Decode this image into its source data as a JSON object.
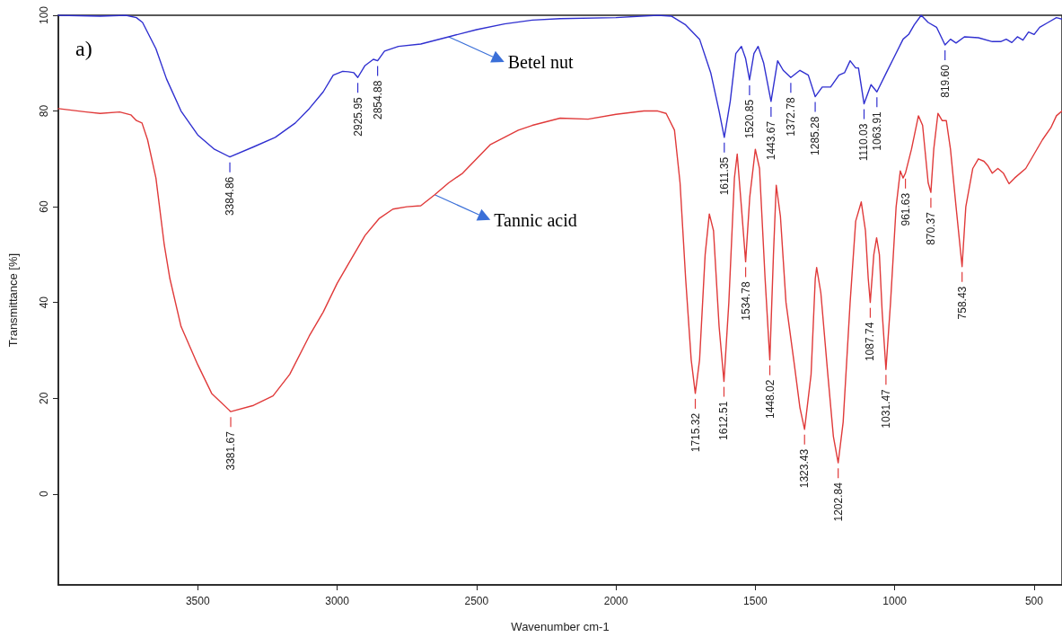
{
  "chart_data": {
    "type": "line",
    "xlabel": "Wavenumber cm-1",
    "ylabel": "Transmittance [%]",
    "xlim": [
      4000,
      400
    ],
    "xticks": [
      3500,
      3000,
      2500,
      2000,
      1500,
      1000,
      500
    ],
    "ylim": [
      -19,
      100
    ],
    "yticks": [
      0,
      20,
      40,
      60,
      80,
      100
    ],
    "grid": false,
    "legend": false,
    "series": [
      {
        "name": "Betel nut",
        "color": "#3030d0",
        "x": [
          4000,
          3850,
          3758,
          3720,
          3698,
          3650,
          3612,
          3560,
          3500,
          3440,
          3384.86,
          3300,
          3222,
          3150,
          3100,
          3050,
          3014,
          2980,
          2960,
          2940,
          2925.95,
          2900,
          2870,
          2854.88,
          2830,
          2780,
          2700,
          2600,
          2500,
          2400,
          2300,
          2200,
          2000,
          1850,
          1800,
          1750,
          1700,
          1660,
          1630,
          1611.35,
          1590,
          1570,
          1550,
          1535,
          1520.85,
          1505,
          1490,
          1470,
          1443.67,
          1420,
          1400,
          1372.78,
          1340,
          1310,
          1285.28,
          1260,
          1230,
          1200,
          1180,
          1160,
          1140,
          1130,
          1110.03,
          1085,
          1063.91,
          1030,
          1000,
          970,
          950,
          930,
          905,
          880,
          850,
          819.6,
          800,
          780,
          750,
          700,
          650,
          620,
          600,
          580,
          560,
          540,
          520,
          500,
          480,
          450,
          420,
          400
        ],
        "values": [
          100,
          99.8,
          100,
          99.5,
          98.5,
          93,
          86.7,
          80,
          75,
          72,
          70.4,
          72.5,
          74.5,
          77.5,
          80.5,
          84,
          87.5,
          88.3,
          88.2,
          88,
          87,
          89.5,
          90.8,
          90.5,
          92.5,
          93.5,
          94,
          95.5,
          97,
          98.2,
          99,
          99.3,
          99.5,
          100,
          99.8,
          98,
          95,
          88,
          80,
          74.5,
          82,
          92,
          93.5,
          91,
          86.5,
          92,
          93.5,
          90,
          82,
          90.5,
          88.5,
          87,
          88.5,
          87.5,
          83,
          85,
          85,
          87.5,
          88,
          90.5,
          89,
          89,
          81.5,
          85.5,
          84,
          88,
          91.5,
          95,
          96,
          98,
          100,
          98.5,
          97.5,
          93.8,
          95,
          94.2,
          95.5,
          95.3,
          94.5,
          94.5,
          95,
          94.3,
          95.5,
          94.8,
          96.5,
          96,
          97.5,
          98.5,
          99.5,
          99.2
        ]
      },
      {
        "name": "Tannic acid",
        "color": "#e03a3a",
        "x": [
          4000,
          3900,
          3850,
          3780,
          3740,
          3720,
          3700,
          3680,
          3650,
          3620,
          3600,
          3560,
          3500,
          3450,
          3381.67,
          3300,
          3230,
          3170,
          3100,
          3050,
          3000,
          2950,
          2900,
          2850,
          2800,
          2750,
          2700,
          2650,
          2600,
          2550,
          2500,
          2450,
          2400,
          2350,
          2300,
          2200,
          2100,
          2000,
          1900,
          1850,
          1820,
          1790,
          1770,
          1750,
          1730,
          1715.32,
          1700,
          1680,
          1665,
          1650,
          1630,
          1612.51,
          1595,
          1575,
          1565,
          1550,
          1534.78,
          1520,
          1500,
          1485,
          1465,
          1448.02,
          1435,
          1425,
          1410,
          1390,
          1360,
          1340,
          1323.43,
          1300,
          1285,
          1280,
          1265,
          1240,
          1220,
          1202.84,
          1185,
          1160,
          1140,
          1120,
          1105,
          1095,
          1087.74,
          1075,
          1065,
          1055,
          1045,
          1031.47,
          1015,
          995,
          980,
          970,
          961.63,
          940,
          915,
          900,
          880,
          870.37,
          860,
          845,
          830,
          815,
          800,
          780,
          758.43,
          745,
          720,
          700,
          680,
          665,
          650,
          630,
          610,
          590,
          570,
          530,
          500,
          470,
          440,
          420,
          400
        ],
        "values": [
          80.5,
          79.8,
          79.5,
          79.8,
          79.2,
          78,
          77.5,
          74,
          66,
          52,
          45,
          35,
          27,
          21,
          17.2,
          18.5,
          20.5,
          25,
          33,
          38,
          44,
          49,
          54,
          57.5,
          59.5,
          60,
          60.2,
          62.5,
          65,
          67,
          70,
          73,
          74.5,
          76,
          77,
          78.5,
          78.3,
          79.3,
          80,
          80,
          79.5,
          76,
          65,
          45,
          28,
          21,
          28,
          50,
          58.5,
          55,
          35,
          23.5,
          40,
          66,
          71,
          60,
          48.5,
          62,
          72,
          68,
          45,
          28,
          50,
          64.5,
          58,
          40,
          27,
          18,
          13.5,
          25,
          45,
          47.3,
          42,
          25,
          12,
          6.5,
          15,
          40,
          57,
          61,
          55,
          45,
          40,
          50,
          53.5,
          50,
          38,
          26,
          40,
          60,
          67.5,
          66,
          67,
          72,
          79,
          77,
          65,
          63,
          72,
          79.5,
          78,
          78,
          72,
          60,
          47.5,
          60,
          68,
          70,
          69.5,
          68.5,
          67,
          68,
          67,
          64.8,
          66,
          68,
          71,
          74,
          76.5,
          79,
          80
        ]
      }
    ],
    "annotations": [
      "a)",
      {
        "text": "3384.86",
        "x": 3384.86,
        "y": 70.4
      },
      {
        "text": "2925.95",
        "x": 2925.95,
        "y": 87
      },
      {
        "text": "2854.88",
        "x": 2854.88,
        "y": 90.5
      },
      {
        "text": "1611.35",
        "x": 1611.35,
        "y": 74.5
      },
      {
        "text": "1520.85",
        "x": 1520.85,
        "y": 86.5
      },
      {
        "text": "1443.67",
        "x": 1443.67,
        "y": 82
      },
      {
        "text": "1372.78",
        "x": 1372.78,
        "y": 87
      },
      {
        "text": "1285.28",
        "x": 1285.28,
        "y": 83
      },
      {
        "text": "1110.03",
        "x": 1110.03,
        "y": 81.5
      },
      {
        "text": "1063.91",
        "x": 1063.91,
        "y": 84
      },
      {
        "text": "819.60",
        "x": 819.6,
        "y": 93.8
      },
      {
        "text": "3381.67",
        "x": 3381.67,
        "y": 17.2
      },
      {
        "text": "1715.32",
        "x": 1715.32,
        "y": 21
      },
      {
        "text": "1612.51",
        "x": 1612.51,
        "y": 23.5
      },
      {
        "text": "1534.78",
        "x": 1534.78,
        "y": 48.5
      },
      {
        "text": "1448.02",
        "x": 1448.02,
        "y": 28
      },
      {
        "text": "1323.43",
        "x": 1323.43,
        "y": 13.5
      },
      {
        "text": "1202.84",
        "x": 1202.84,
        "y": 6.5
      },
      {
        "text": "1087.74",
        "x": 1087.74,
        "y": 40
      },
      {
        "text": "1031.47",
        "x": 1031.47,
        "y": 26
      },
      {
        "text": "961.63",
        "x": 961.63,
        "y": 67
      },
      {
        "text": "870.37",
        "x": 870.37,
        "y": 63
      },
      {
        "text": "758.43",
        "x": 758.43,
        "y": 47.5
      }
    ]
  }
}
